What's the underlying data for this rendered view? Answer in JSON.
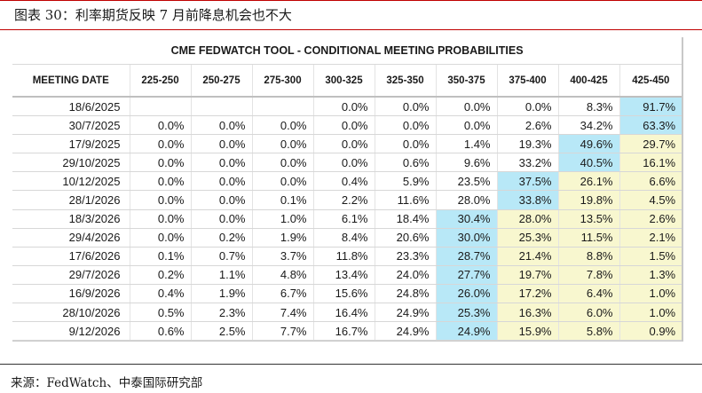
{
  "caption": "图表 30：利率期货反映 7 月前降息机会也不大",
  "table": {
    "title": "CME FEDWATCH TOOL - CONDITIONAL MEETING PROBABILITIES",
    "columns": [
      "MEETING DATE",
      "225-250",
      "250-275",
      "275-300",
      "300-325",
      "325-350",
      "350-375",
      "375-400",
      "400-425",
      "425-450"
    ],
    "rows": [
      {
        "date": "18/6/2025",
        "values": [
          "",
          "",
          "",
          "0.0%",
          "0.0%",
          "0.0%",
          "0.0%",
          "8.3%",
          "91.7%"
        ]
      },
      {
        "date": "30/7/2025",
        "values": [
          "0.0%",
          "0.0%",
          "0.0%",
          "0.0%",
          "0.0%",
          "0.0%",
          "2.6%",
          "34.2%",
          "63.3%"
        ]
      },
      {
        "date": "17/9/2025",
        "values": [
          "0.0%",
          "0.0%",
          "0.0%",
          "0.0%",
          "0.0%",
          "1.4%",
          "19.3%",
          "49.6%",
          "29.7%"
        ]
      },
      {
        "date": "29/10/2025",
        "values": [
          "0.0%",
          "0.0%",
          "0.0%",
          "0.0%",
          "0.6%",
          "9.6%",
          "33.2%",
          "40.5%",
          "16.1%"
        ]
      },
      {
        "date": "10/12/2025",
        "values": [
          "0.0%",
          "0.0%",
          "0.0%",
          "0.4%",
          "5.9%",
          "23.5%",
          "37.5%",
          "26.1%",
          "6.6%"
        ]
      },
      {
        "date": "28/1/2026",
        "values": [
          "0.0%",
          "0.0%",
          "0.1%",
          "2.2%",
          "11.6%",
          "28.0%",
          "33.8%",
          "19.8%",
          "4.5%"
        ]
      },
      {
        "date": "18/3/2026",
        "values": [
          "0.0%",
          "0.0%",
          "1.0%",
          "6.1%",
          "18.4%",
          "30.4%",
          "28.0%",
          "13.5%",
          "2.6%"
        ]
      },
      {
        "date": "29/4/2026",
        "values": [
          "0.0%",
          "0.2%",
          "1.9%",
          "8.4%",
          "20.6%",
          "30.0%",
          "25.3%",
          "11.5%",
          "2.1%"
        ]
      },
      {
        "date": "17/6/2026",
        "values": [
          "0.1%",
          "0.7%",
          "3.7%",
          "11.8%",
          "23.3%",
          "28.7%",
          "21.4%",
          "8.8%",
          "1.5%"
        ]
      },
      {
        "date": "29/7/2026",
        "values": [
          "0.2%",
          "1.1%",
          "4.8%",
          "13.4%",
          "24.0%",
          "27.7%",
          "19.7%",
          "7.8%",
          "1.3%"
        ]
      },
      {
        "date": "16/9/2026",
        "values": [
          "0.4%",
          "1.9%",
          "6.7%",
          "15.6%",
          "24.8%",
          "26.0%",
          "17.2%",
          "6.4%",
          "1.0%"
        ]
      },
      {
        "date": "28/10/2026",
        "values": [
          "0.5%",
          "2.3%",
          "7.4%",
          "16.4%",
          "24.9%",
          "25.3%",
          "16.3%",
          "6.0%",
          "1.0%"
        ]
      },
      {
        "date": "9/12/2026",
        "values": [
          "0.6%",
          "2.5%",
          "7.7%",
          "16.7%",
          "24.9%",
          "24.9%",
          "15.9%",
          "5.8%",
          "0.9%"
        ]
      }
    ],
    "highlights": {
      "blue": {
        "0": [
          8
        ],
        "1": [
          8
        ],
        "2": [
          7
        ],
        "3": [
          7
        ],
        "4": [
          6
        ],
        "5": [
          6
        ],
        "6": [
          5
        ],
        "7": [
          5
        ],
        "8": [
          5
        ],
        "9": [
          5
        ],
        "10": [
          5
        ],
        "11": [
          5
        ],
        "12": [
          5
        ]
      },
      "yellow": {
        "2": [
          8
        ],
        "3": [
          8
        ],
        "4": [
          7,
          8
        ],
        "5": [
          7,
          8
        ],
        "6": [
          6,
          7,
          8
        ],
        "7": [
          6,
          7,
          8
        ],
        "8": [
          6,
          7,
          8
        ],
        "9": [
          6,
          7,
          8
        ],
        "10": [
          6,
          7,
          8
        ],
        "11": [
          6,
          7,
          8
        ],
        "12": [
          6,
          7,
          8
        ]
      }
    },
    "colors": {
      "highlight_max": "#b8e8f7",
      "highlight_band": "#f8f7cf",
      "caption_rule": "#c00000"
    }
  },
  "source": "来源：FedWatch、中泰国际研究部"
}
